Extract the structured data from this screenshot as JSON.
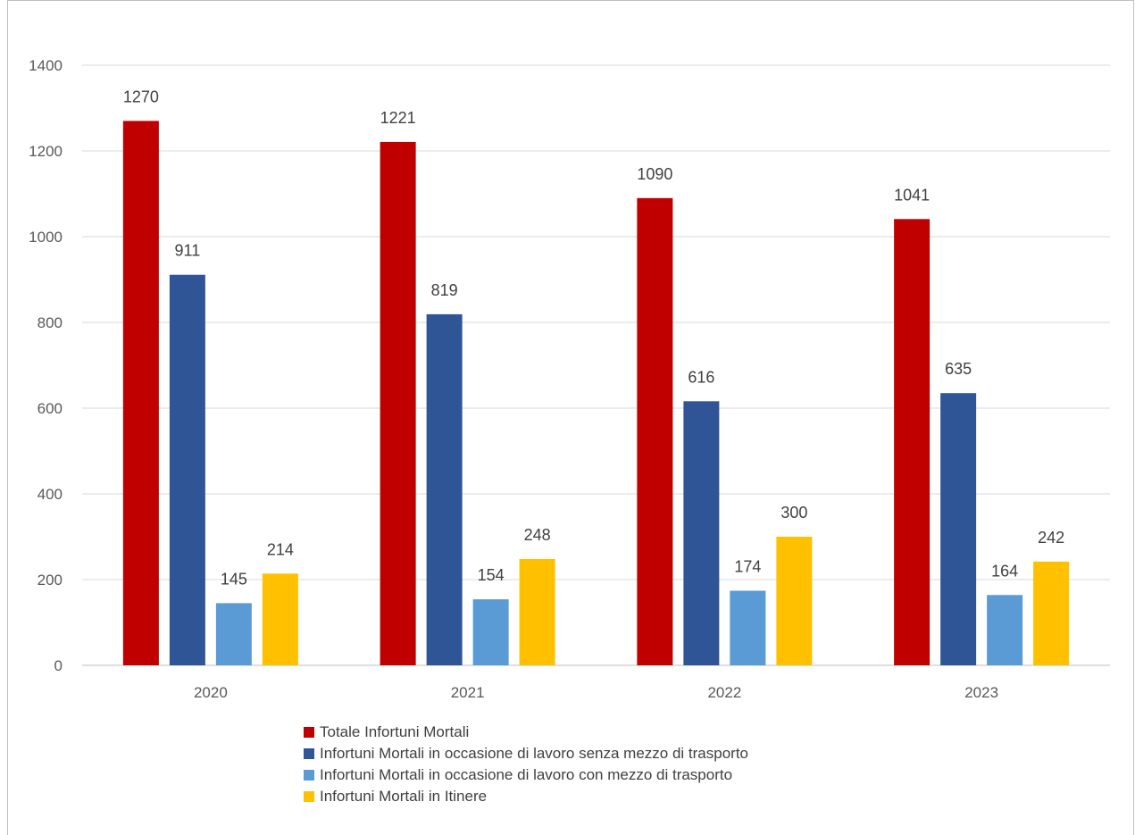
{
  "chart_data": {
    "type": "bar",
    "categories": [
      "2020",
      "2021",
      "2022",
      "2023"
    ],
    "series": [
      {
        "name": "Totale Infortuni Mortali",
        "color": "#c00000",
        "values": [
          1270,
          1221,
          1090,
          1041
        ]
      },
      {
        "name": "Infortuni Mortali in occasione di lavoro senza mezzo di trasporto",
        "color": "#2f5597",
        "values": [
          911,
          819,
          616,
          635
        ]
      },
      {
        "name": "Infortuni Mortali in occasione di lavoro con mezzo di trasporto",
        "color": "#5b9bd5",
        "values": [
          145,
          154,
          174,
          164
        ]
      },
      {
        "name": "Infortuni Mortali in Itinere",
        "color": "#ffc000",
        "values": [
          214,
          248,
          300,
          242
        ]
      }
    ],
    "yticks": [
      "0",
      "200",
      "400",
      "600",
      "800",
      "1000",
      "1200",
      "1400"
    ],
    "ylim": [
      0,
      1400
    ],
    "grid": true,
    "legend_position": "bottom",
    "data_labels": true
  }
}
